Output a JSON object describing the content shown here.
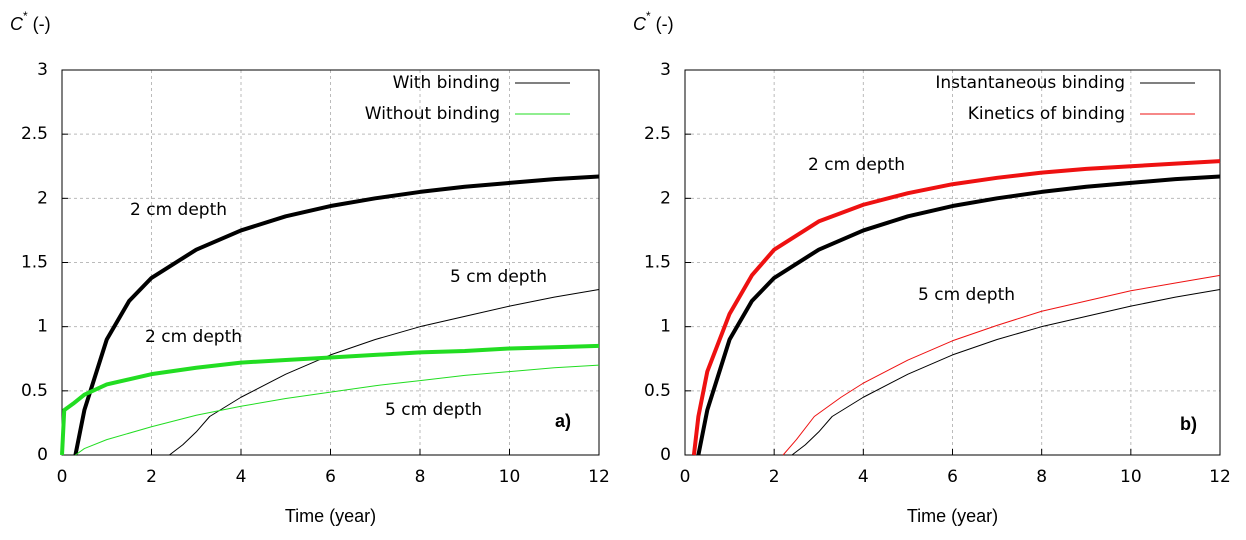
{
  "chart_data": [
    {
      "type": "line",
      "panel_label": "a)",
      "ylabel": [
        "C",
        "*",
        "(-)"
      ],
      "xlabel": "Time (year)",
      "xlim": [
        0,
        12
      ],
      "ylim": [
        0,
        3
      ],
      "xticks": [
        0,
        2,
        4,
        6,
        8,
        10,
        12
      ],
      "yticks": [
        0,
        0.5,
        1,
        1.5,
        2,
        2.5,
        3
      ],
      "grid": true,
      "legend": "top-right",
      "series": [
        {
          "name": "With binding",
          "color": "#000000",
          "curves": [
            {
              "width": 4,
              "x": [
                0.3,
                0.5,
                1,
                1.5,
                2,
                3,
                4,
                5,
                6,
                7,
                8,
                9,
                10,
                11,
                12
              ],
              "values": [
                0,
                0.35,
                0.9,
                1.2,
                1.38,
                1.6,
                1.75,
                1.86,
                1.94,
                2.0,
                2.05,
                2.09,
                2.12,
                2.15,
                2.17
              ]
            },
            {
              "width": 1,
              "x": [
                2.4,
                2.7,
                3,
                3.3,
                4,
                5,
                6,
                7,
                8,
                9,
                10,
                11,
                12
              ],
              "values": [
                0,
                0.08,
                0.18,
                0.3,
                0.45,
                0.63,
                0.78,
                0.9,
                1.0,
                1.08,
                1.16,
                1.23,
                1.29
              ]
            }
          ]
        },
        {
          "name": "Without binding",
          "color": "#22dd22",
          "curves": [
            {
              "width": 4,
              "x": [
                0,
                0.05,
                0.25,
                0.5,
                1,
                2,
                3,
                4,
                5,
                6,
                7,
                8,
                9,
                10,
                11,
                12
              ],
              "values": [
                0,
                0.35,
                0.4,
                0.47,
                0.55,
                0.63,
                0.68,
                0.72,
                0.74,
                0.76,
                0.78,
                0.8,
                0.81,
                0.83,
                0.84,
                0.85
              ]
            },
            {
              "width": 1,
              "x": [
                0.3,
                0.5,
                1,
                2,
                3,
                4,
                5,
                6,
                7,
                8,
                9,
                10,
                11,
                12
              ],
              "values": [
                0,
                0.05,
                0.12,
                0.22,
                0.31,
                0.38,
                0.44,
                0.49,
                0.54,
                0.58,
                0.62,
                0.65,
                0.68,
                0.7
              ]
            }
          ]
        }
      ],
      "annotations": [
        {
          "text": "2 cm depth",
          "color": "#000000"
        },
        {
          "text": "5 cm depth",
          "color": "#000000"
        },
        {
          "text": "2 cm depth",
          "color": "#22dd22"
        },
        {
          "text": "5 cm depth",
          "color": "#22dd22"
        }
      ]
    },
    {
      "type": "line",
      "panel_label": "b)",
      "ylabel": [
        "C",
        "*",
        "(-)"
      ],
      "xlabel": "Time (year)",
      "xlim": [
        0,
        12
      ],
      "ylim": [
        0,
        3
      ],
      "xticks": [
        0,
        2,
        4,
        6,
        8,
        10,
        12
      ],
      "yticks": [
        0,
        0.5,
        1,
        1.5,
        2,
        2.5,
        3
      ],
      "grid": true,
      "legend": "top-right",
      "series": [
        {
          "name": "Instantaneous binding",
          "color": "#000000",
          "curves": [
            {
              "width": 4,
              "x": [
                0.3,
                0.5,
                1,
                1.5,
                2,
                3,
                4,
                5,
                6,
                7,
                8,
                9,
                10,
                11,
                12
              ],
              "values": [
                0,
                0.35,
                0.9,
                1.2,
                1.38,
                1.6,
                1.75,
                1.86,
                1.94,
                2.0,
                2.05,
                2.09,
                2.12,
                2.15,
                2.17
              ]
            },
            {
              "width": 1,
              "x": [
                2.4,
                2.7,
                3,
                3.3,
                4,
                5,
                6,
                7,
                8,
                9,
                10,
                11,
                12
              ],
              "values": [
                0,
                0.08,
                0.18,
                0.3,
                0.45,
                0.63,
                0.78,
                0.9,
                1.0,
                1.08,
                1.16,
                1.23,
                1.29
              ]
            }
          ]
        },
        {
          "name": "Kinetics of binding",
          "color": "#ee1111",
          "curves": [
            {
              "width": 4,
              "x": [
                0.2,
                0.3,
                0.5,
                1,
                1.5,
                2,
                3,
                4,
                5,
                6,
                7,
                8,
                9,
                10,
                11,
                12
              ],
              "values": [
                0,
                0.3,
                0.65,
                1.1,
                1.4,
                1.6,
                1.82,
                1.95,
                2.04,
                2.11,
                2.16,
                2.2,
                2.23,
                2.25,
                2.27,
                2.29
              ]
            },
            {
              "width": 1,
              "x": [
                2.2,
                2.5,
                2.9,
                3.5,
                4,
                5,
                6,
                7,
                8,
                9,
                10,
                11,
                12
              ],
              "values": [
                0,
                0.12,
                0.3,
                0.45,
                0.56,
                0.74,
                0.89,
                1.01,
                1.12,
                1.2,
                1.28,
                1.34,
                1.4
              ]
            }
          ]
        }
      ],
      "annotations": [
        {
          "text": "2 cm depth",
          "color": "#000000"
        },
        {
          "text": "5 cm depth",
          "color": "#000000"
        }
      ]
    }
  ]
}
